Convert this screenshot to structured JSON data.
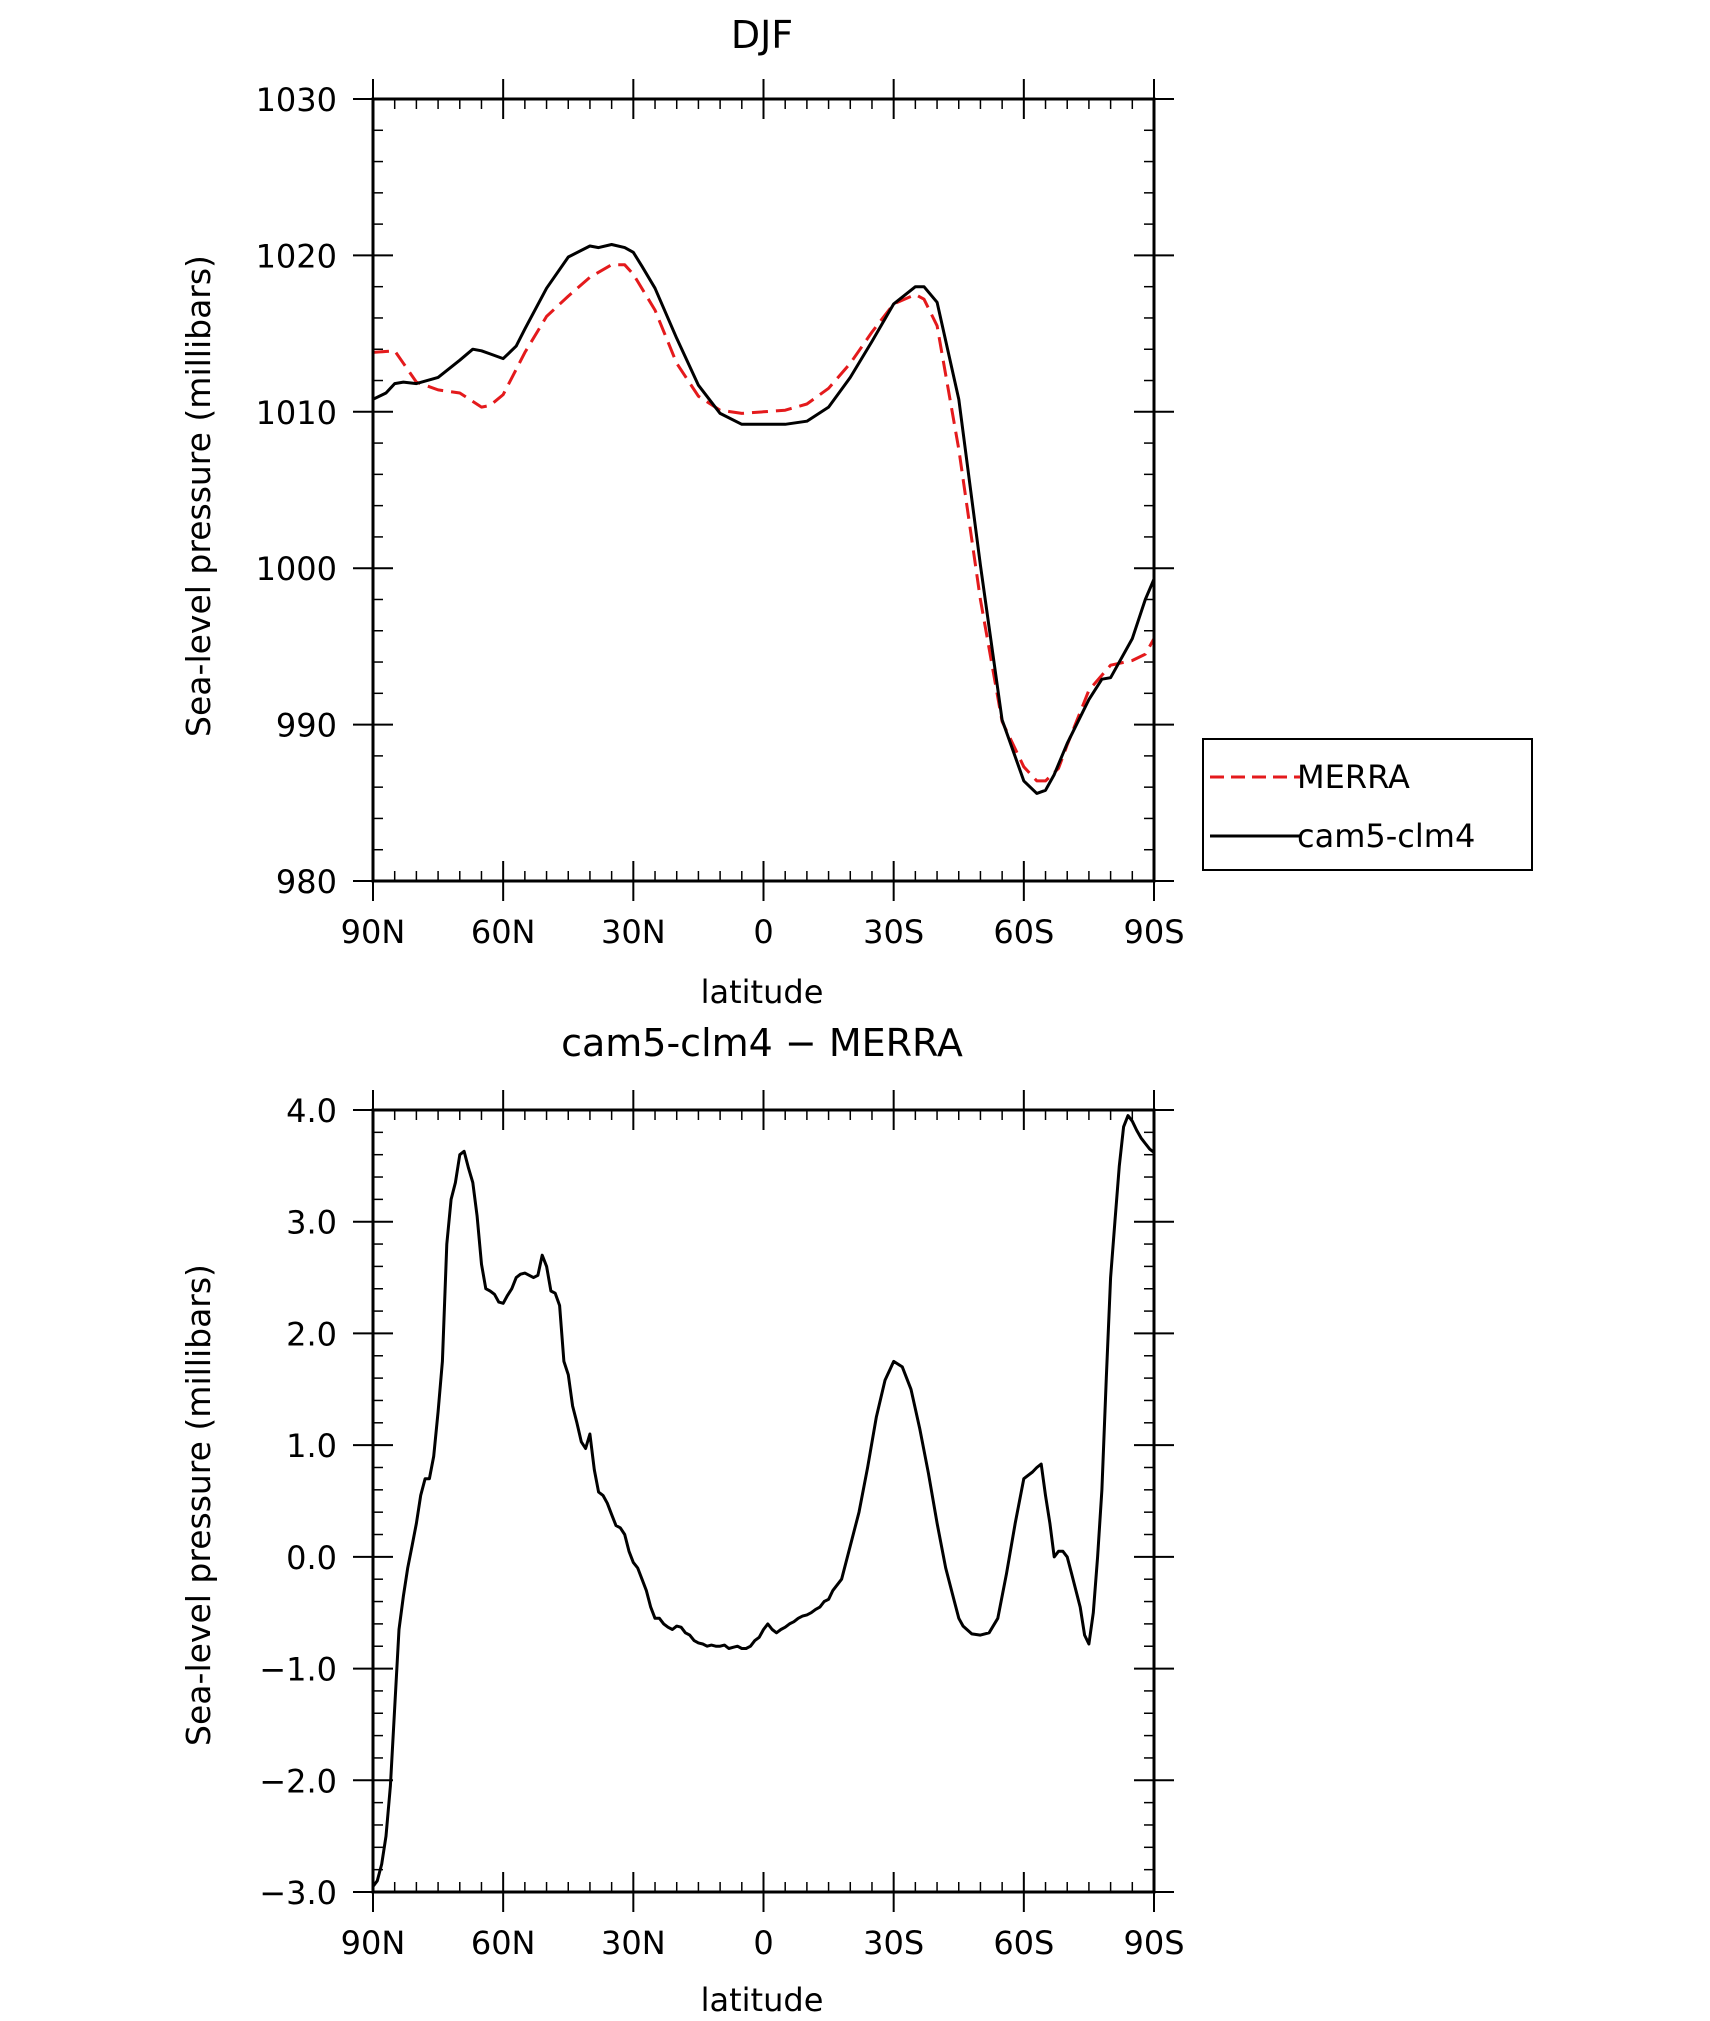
{
  "chart_data": [
    {
      "type": "line",
      "title": "DJF",
      "xlabel": "latitude",
      "ylabel": "Sea-level pressure (millibars)",
      "xlim": [
        90,
        -90
      ],
      "ylim": [
        980,
        1030
      ],
      "x_ticks": [
        90,
        60,
        30,
        0,
        -30,
        -60,
        -90
      ],
      "x_tick_labels": [
        "90N",
        "60N",
        "30N",
        "0",
        "30S",
        "60S",
        "90S"
      ],
      "y_ticks": [
        980,
        990,
        1000,
        1010,
        1020,
        1030
      ],
      "y_tick_labels": [
        "980",
        "990",
        "1000",
        "1010",
        "1020",
        "1030"
      ],
      "grid": false,
      "legend_position": "right",
      "series": [
        {
          "name": "MERRA",
          "color": "#e41a1c",
          "dash": "dashed",
          "x": [
            90,
            85,
            83,
            80,
            75,
            70,
            65,
            63,
            60,
            55,
            50,
            45,
            40,
            35,
            32,
            30,
            25,
            20,
            15,
            10,
            5,
            0,
            -5,
            -10,
            -15,
            -20,
            -25,
            -30,
            -35,
            -37,
            -40,
            -45,
            -50,
            -55,
            -60,
            -63,
            -65,
            -68,
            -70,
            -75,
            -80,
            -85,
            -88,
            -90
          ],
          "y": [
            1013.8,
            1013.9,
            1013.1,
            1011.9,
            1011.4,
            1011.2,
            1010.3,
            1010.4,
            1011.1,
            1013.8,
            1016.1,
            1017.4,
            1018.6,
            1019.4,
            1019.4,
            1018.8,
            1016.5,
            1013.1,
            1011.0,
            1010.1,
            1009.9,
            1010.0,
            1010.1,
            1010.5,
            1011.5,
            1013.1,
            1015.1,
            1016.9,
            1017.5,
            1017.2,
            1015.5,
            1007.6,
            998.0,
            990.2,
            987.3,
            986.4,
            986.4,
            987.2,
            988.7,
            992.2,
            993.8,
            994.1,
            994.5,
            995.5
          ]
        },
        {
          "name": "cam5-clm4",
          "color": "#000000",
          "dash": "solid",
          "x": [
            90,
            87,
            85,
            83,
            80,
            75,
            70,
            67,
            65,
            63,
            60,
            57,
            55,
            50,
            45,
            40,
            38,
            35,
            32,
            30,
            28,
            25,
            20,
            15,
            10,
            5,
            0,
            -5,
            -10,
            -15,
            -20,
            -25,
            -30,
            -35,
            -37,
            -40,
            -45,
            -50,
            -55,
            -60,
            -63,
            -65,
            -67,
            -70,
            -75,
            -78,
            -80,
            -85,
            -88,
            -90
          ],
          "y": [
            1010.8,
            1011.2,
            1011.8,
            1011.9,
            1011.8,
            1012.2,
            1013.3,
            1014.0,
            1013.9,
            1013.7,
            1013.4,
            1014.2,
            1015.3,
            1017.9,
            1019.9,
            1020.6,
            1020.5,
            1020.7,
            1020.5,
            1020.2,
            1019.3,
            1017.9,
            1014.7,
            1011.7,
            1009.9,
            1009.2,
            1009.2,
            1009.2,
            1009.4,
            1010.3,
            1012.2,
            1014.5,
            1016.9,
            1018.0,
            1018.0,
            1017.0,
            1010.8,
            1000.2,
            990.3,
            986.4,
            985.6,
            985.8,
            986.8,
            988.8,
            991.6,
            992.9,
            993.0,
            995.5,
            998.0,
            999.3
          ]
        }
      ]
    },
    {
      "type": "line",
      "title": "cam5-clm4 − MERRA",
      "xlabel": "latitude",
      "ylabel": "Sea-level pressure (millibars)",
      "xlim": [
        90,
        -90
      ],
      "ylim": [
        -3.0,
        4.0
      ],
      "x_ticks": [
        90,
        60,
        30,
        0,
        -30,
        -60,
        -90
      ],
      "x_tick_labels": [
        "90N",
        "60N",
        "30N",
        "0",
        "30S",
        "60S",
        "90S"
      ],
      "y_ticks": [
        -3,
        -2,
        -1,
        0,
        1,
        2,
        3,
        4
      ],
      "y_tick_labels": [
        "−3.0",
        "−2.0",
        "−1.0",
        "0.0",
        "1.0",
        "2.0",
        "3.0",
        "4.0"
      ],
      "grid": false,
      "series": [
        {
          "color": "#000000",
          "dash": "solid",
          "x": [
            90,
            89,
            88,
            87,
            86,
            85,
            84,
            83,
            82,
            81,
            80,
            79,
            78,
            77,
            76,
            75,
            74,
            73,
            72,
            71,
            70,
            69,
            68,
            67,
            66,
            65,
            64,
            63,
            62,
            61,
            60,
            59,
            58,
            57,
            56,
            55,
            54,
            53,
            52,
            51,
            50,
            49,
            48,
            47,
            46,
            45,
            44,
            43,
            42,
            41,
            40,
            39,
            38,
            37,
            36,
            35,
            34,
            33,
            32,
            31,
            30,
            29,
            28,
            27,
            26,
            25,
            24,
            23,
            22,
            21,
            20,
            19,
            18,
            17,
            16,
            15,
            14,
            13,
            12,
            11,
            10,
            9,
            8,
            7,
            6,
            5,
            4,
            3,
            2,
            1,
            0,
            -1,
            -2,
            -3,
            -4,
            -5,
            -6,
            -7,
            -8,
            -9,
            -10,
            -11,
            -12,
            -13,
            -14,
            -15,
            -16,
            -18,
            -20,
            -22,
            -24,
            -26,
            -28,
            -30,
            -32,
            -34,
            -36,
            -38,
            -40,
            -42,
            -44,
            -45,
            -46,
            -48,
            -50,
            -52,
            -54,
            -56,
            -58,
            -60,
            -62,
            -63,
            -64,
            -65,
            -66,
            -67,
            -68,
            -69,
            -70,
            -71,
            -72,
            -73,
            -74,
            -75,
            -76,
            -77,
            -78,
            -79,
            -80,
            -81,
            -82,
            -83,
            -84,
            -85,
            -86,
            -87,
            -88,
            -89,
            -90
          ],
          "y": [
            -2.95,
            -2.9,
            -2.75,
            -2.5,
            -2.05,
            -1.35,
            -0.65,
            -0.35,
            -0.1,
            0.1,
            0.3,
            0.55,
            0.7,
            0.7,
            0.9,
            1.3,
            1.75,
            2.8,
            3.2,
            3.35,
            3.6,
            3.63,
            3.48,
            3.35,
            3.05,
            2.62,
            2.4,
            2.38,
            2.35,
            2.28,
            2.27,
            2.34,
            2.4,
            2.5,
            2.53,
            2.54,
            2.52,
            2.5,
            2.52,
            2.7,
            2.6,
            2.38,
            2.36,
            2.25,
            1.75,
            1.63,
            1.35,
            1.2,
            1.03,
            0.97,
            1.1,
            0.78,
            0.58,
            0.55,
            0.48,
            0.38,
            0.28,
            0.26,
            0.2,
            0.05,
            -0.05,
            -0.1,
            -0.2,
            -0.3,
            -0.45,
            -0.55,
            -0.55,
            -0.6,
            -0.63,
            -0.65,
            -0.62,
            -0.63,
            -0.68,
            -0.7,
            -0.75,
            -0.77,
            -0.78,
            -0.8,
            -0.79,
            -0.8,
            -0.8,
            -0.79,
            -0.82,
            -0.81,
            -0.8,
            -0.82,
            -0.82,
            -0.8,
            -0.75,
            -0.72,
            -0.65,
            -0.6,
            -0.65,
            -0.68,
            -0.65,
            -0.63,
            -0.6,
            -0.58,
            -0.55,
            -0.53,
            -0.52,
            -0.5,
            -0.47,
            -0.45,
            -0.4,
            -0.38,
            -0.3,
            -0.2,
            0.1,
            0.4,
            0.8,
            1.25,
            1.58,
            1.75,
            1.7,
            1.5,
            1.15,
            0.75,
            0.3,
            -0.1,
            -0.4,
            -0.55,
            -0.62,
            -0.69,
            -0.7,
            -0.68,
            -0.55,
            -0.15,
            0.3,
            0.7,
            0.76,
            0.8,
            0.83,
            0.55,
            0.3,
            0.0,
            0.05,
            0.05,
            0.0,
            -0.15,
            -0.3,
            -0.45,
            -0.7,
            -0.78,
            -0.5,
            0.0,
            0.6,
            1.6,
            2.5,
            3.0,
            3.5,
            3.85,
            3.95,
            3.9,
            3.82,
            3.75,
            3.7,
            3.65,
            3.62
          ]
        }
      ]
    }
  ]
}
